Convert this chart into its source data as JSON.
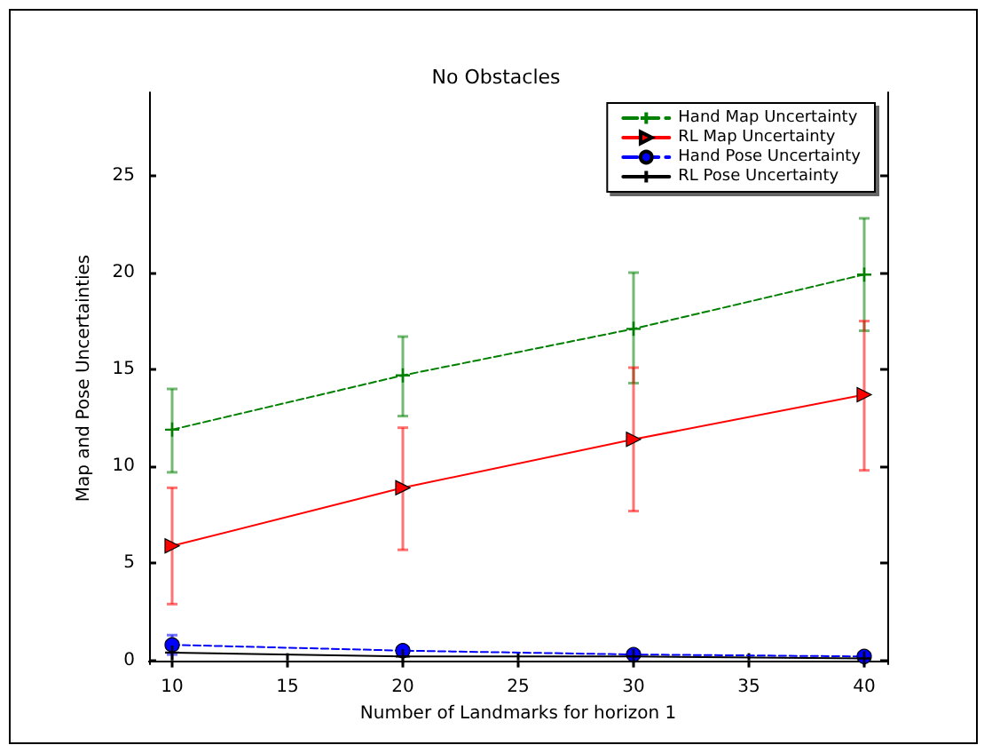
{
  "chart_data": {
    "type": "line",
    "title": "No Obstacles",
    "xlabel": "Number of Landmarks for horizon 1",
    "ylabel": "Map and Pose Uncertainties",
    "x": [
      10,
      20,
      30,
      40
    ],
    "series": [
      {
        "name": "Hand Map Uncertainty",
        "color": "#008000",
        "line_style": "dashed",
        "marker": "cross",
        "values": [
          11.9,
          14.7,
          17.1,
          19.9
        ],
        "errors": [
          [
            9.7,
            14.0
          ],
          [
            12.6,
            16.7
          ],
          [
            14.3,
            20.0
          ],
          [
            17.0,
            22.8
          ]
        ]
      },
      {
        "name": "RL Map Uncertainty",
        "color": "#ff0000",
        "line_style": "solid",
        "marker": "triangle",
        "values": [
          5.9,
          8.9,
          11.4,
          13.7
        ],
        "errors": [
          [
            2.9,
            8.9
          ],
          [
            5.7,
            12.0
          ],
          [
            7.7,
            15.1
          ],
          [
            9.8,
            17.5
          ]
        ]
      },
      {
        "name": "Hand Pose Uncertainty",
        "color": "#0000ff",
        "line_style": "dashed",
        "marker": "circle",
        "values": [
          0.8,
          0.5,
          0.3,
          0.2
        ],
        "errors": [
          [
            0.3,
            1.3
          ],
          [
            0.3,
            0.6
          ],
          [
            0.2,
            0.4
          ],
          [
            0.1,
            0.3
          ]
        ]
      },
      {
        "name": "RL Pose Uncertainty",
        "color": "#000000",
        "line_style": "solid",
        "marker": "cross",
        "values": [
          0.4,
          0.2,
          0.2,
          0.1
        ]
      }
    ],
    "xlim": [
      9,
      41
    ],
    "xticks": [
      10,
      15,
      20,
      25,
      30,
      35,
      40
    ],
    "ylim": [
      -0.2,
      29.3
    ],
    "yticks": [
      0,
      5,
      10,
      15,
      20,
      25
    ],
    "grid": false,
    "legend": "top right"
  }
}
